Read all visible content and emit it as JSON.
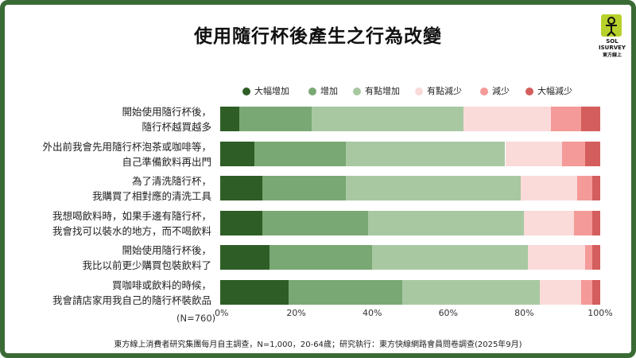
{
  "title": "使用隨行杯後產生之行為改變",
  "logo": {
    "line1": "SOL",
    "line2": "ISURVEY",
    "line3": "東方線上"
  },
  "sample_note": "(N=760)",
  "footnote": "東方線上消費者研究集團每月自主調查，N=1,000，20-64歲；研究執行：東方快線網路會員問卷調查(2025年9月)",
  "chart_data": {
    "type": "bar",
    "orientation": "horizontal",
    "stacked": true,
    "title": "使用隨行杯後產生之行為改變",
    "xlim": [
      0,
      100
    ],
    "x_ticks": [
      "0%",
      "20%",
      "40%",
      "60%",
      "80%",
      "100%"
    ],
    "legend_position": "top",
    "categories": [
      [
        "開始使用隨行杯後，",
        "隨行杯越買越多"
      ],
      [
        "外出前我會先用隨行杯泡茶或咖啡等，",
        "自己準備飲料再出門"
      ],
      [
        "為了清洗隨行杯，",
        "我購買了相對應的清洗工具"
      ],
      [
        "我想喝飲料時，如果手邊有隨行杯，",
        "我會找可以裝水的地方，而不喝飲料"
      ],
      [
        "開始使用隨行杯後，",
        "我比以前更少購買包裝飲料了"
      ],
      [
        "買咖啡或飲料的時候，",
        "我會請店家用我自己的隨行杯裝飲品"
      ]
    ],
    "series": [
      {
        "name": "大幅增加",
        "color": "#2e5e26",
        "values": [
          5,
          9,
          11,
          11,
          13,
          18
        ]
      },
      {
        "name": "增加",
        "color": "#7aa874",
        "values": [
          19,
          24,
          22,
          28,
          27,
          30
        ]
      },
      {
        "name": "有點增加",
        "color": "#a8c8a2",
        "values": [
          40,
          42,
          46,
          41,
          41,
          36
        ]
      },
      {
        "name": "有點減少",
        "color": "#fbdada",
        "values": [
          23,
          15,
          15,
          13,
          15,
          11
        ]
      },
      {
        "name": "減少",
        "color": "#f49a98",
        "values": [
          8,
          6,
          4,
          5,
          2,
          3
        ]
      },
      {
        "name": "大幅減少",
        "color": "#d45e5d",
        "values": [
          5,
          4,
          2,
          2,
          2,
          2
        ]
      }
    ]
  }
}
